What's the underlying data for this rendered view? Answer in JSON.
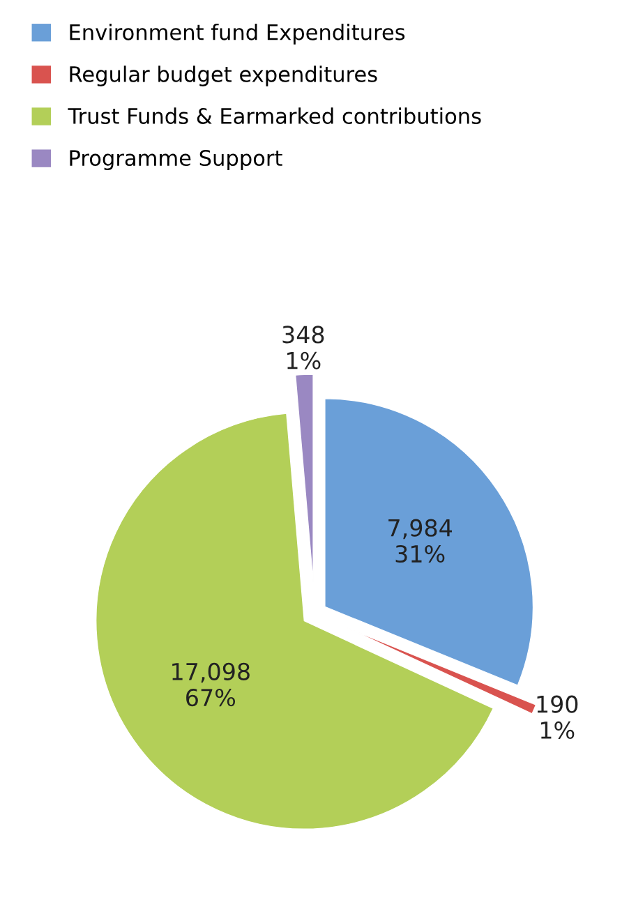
{
  "chart_data": {
    "type": "pie",
    "categories": [
      "Environment fund Expenditures",
      "Regular budget expenditures",
      "Trust Funds & Earmarked contributions",
      "Programme Support"
    ],
    "values": [
      7984,
      190,
      17098,
      348
    ],
    "colors": [
      "#6a9fd8",
      "#d9534f",
      "#b3cf58",
      "#9a88c2"
    ],
    "value_labels": [
      "7,984\n31%",
      "190\n1%",
      "17,098\n67%",
      "348\n1%"
    ],
    "legend": "top left"
  }
}
